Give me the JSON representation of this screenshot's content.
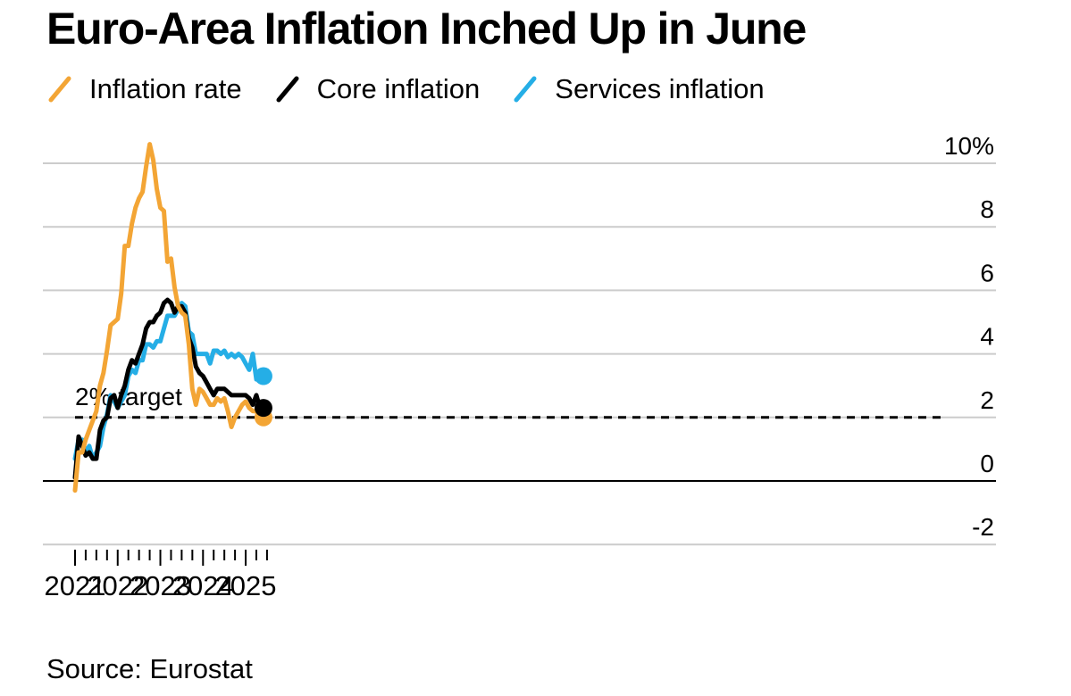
{
  "title": "Euro-Area Inflation Inched Up in June",
  "source": "Source: Eurostat",
  "colors": {
    "inflation": "#f3a535",
    "core": "#000000",
    "services": "#25aee6",
    "grid": "#cccccc"
  },
  "chart_data": {
    "type": "line",
    "title": "Euro-Area Inflation Inched Up in June",
    "ylim": [
      -2,
      10
    ],
    "y_ticks": [
      10,
      8,
      6,
      4,
      2,
      0,
      -2
    ],
    "y_tick_labels": [
      "10%",
      "8",
      "6",
      "4",
      "2",
      "0",
      "-2"
    ],
    "x_ticks": [
      "2021",
      "2022",
      "2023",
      "2024",
      "2025"
    ],
    "x_start": "2021-01",
    "x_end": "2025-06",
    "legend_position": "top-left",
    "grid": true,
    "annotation": {
      "text": "2% target",
      "value": 2
    },
    "series": [
      {
        "name": "Inflation rate",
        "color_key": "inflation",
        "values": [
          -0.3,
          0.9,
          0.9,
          1.3,
          1.6,
          1.9,
          2.2,
          3.0,
          3.4,
          4.1,
          4.9,
          5.0,
          5.1,
          5.9,
          7.4,
          7.4,
          8.1,
          8.6,
          8.9,
          9.1,
          9.9,
          10.6,
          10.1,
          9.2,
          8.6,
          8.5,
          6.9,
          7.0,
          6.1,
          5.5,
          5.3,
          5.2,
          4.3,
          2.9,
          2.4,
          2.9,
          2.8,
          2.6,
          2.4,
          2.4,
          2.6,
          2.5,
          2.6,
          2.2,
          1.7,
          2.0,
          2.2,
          2.4,
          2.5,
          2.3,
          2.2,
          2.2,
          1.9,
          2.0
        ]
      },
      {
        "name": "Core inflation",
        "color_key": "core",
        "values": [
          0.1,
          1.4,
          1.1,
          0.8,
          0.9,
          0.7,
          0.7,
          1.6,
          1.9,
          2.0,
          2.6,
          2.7,
          2.3,
          2.7,
          3.0,
          3.5,
          3.8,
          3.7,
          4.0,
          4.3,
          4.8,
          5.0,
          5.0,
          5.2,
          5.3,
          5.6,
          5.7,
          5.6,
          5.3,
          5.5,
          5.5,
          5.3,
          4.5,
          4.2,
          3.6,
          3.4,
          3.3,
          3.1,
          2.9,
          2.7,
          2.9,
          2.9,
          2.9,
          2.8,
          2.7,
          2.7,
          2.7,
          2.7,
          2.7,
          2.6,
          2.4,
          2.7,
          2.3,
          2.3
        ]
      },
      {
        "name": "Services inflation",
        "color_key": "services",
        "values": [
          0.7,
          1.3,
          1.3,
          0.9,
          1.1,
          0.7,
          0.9,
          1.1,
          1.7,
          2.1,
          2.7,
          2.5,
          2.3,
          2.5,
          2.7,
          3.3,
          3.5,
          3.4,
          3.8,
          3.8,
          4.3,
          4.3,
          4.2,
          4.4,
          4.4,
          4.8,
          5.2,
          5.2,
          5.2,
          5.4,
          5.6,
          5.5,
          4.7,
          4.6,
          4.0,
          4.0,
          4.0,
          4.0,
          3.7,
          4.1,
          4.1,
          4.0,
          4.1,
          3.9,
          4.0,
          3.9,
          4.0,
          3.9,
          3.7,
          3.5,
          4.0,
          3.2,
          3.2,
          3.3
        ]
      }
    ]
  }
}
